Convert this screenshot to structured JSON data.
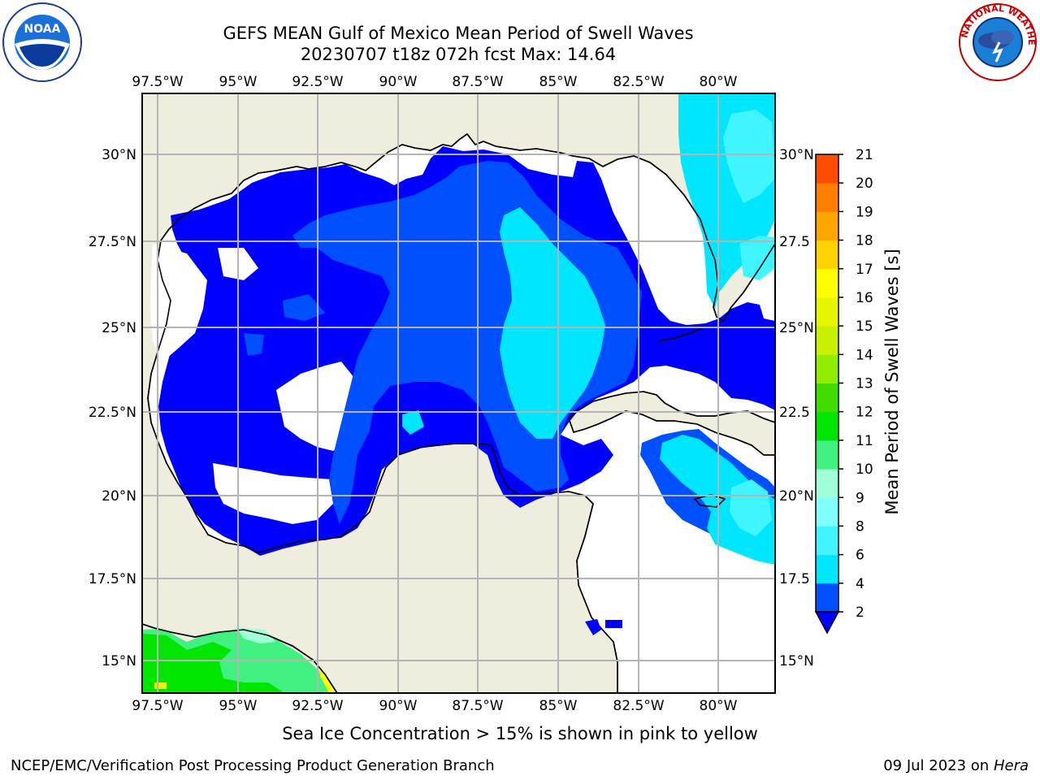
{
  "title": {
    "line1": "GEFS MEAN Gulf of Mexico Mean Period of Swell Waves",
    "line2": "20230707 t18z 072h fcst   Max: 14.64"
  },
  "logos": {
    "left": {
      "icon": "noaa-logo",
      "text": "NOAA"
    },
    "right": {
      "icon": "nws-logo",
      "text": "NATIONAL WEATHER SERVICE"
    }
  },
  "map": {
    "longitude_labels": [
      "97.5°W",
      "95°W",
      "92.5°W",
      "90°W",
      "87.5°W",
      "85°W",
      "82.5°W",
      "80°W"
    ],
    "latitude_labels_left": [
      "30°N",
      "27.5°N",
      "25°N",
      "22.5°N",
      "20°N",
      "17.5°N",
      "15°N"
    ],
    "latitude_labels_right": [
      "30°N",
      "27.5",
      "25°N",
      "22.5",
      "20°N",
      "17.5",
      "15°N"
    ],
    "lon_range": [
      -98,
      -78.4
    ],
    "lat_range": [
      14,
      31.8
    ],
    "land_color": "#efedde",
    "grid_color": "#b4b4b4"
  },
  "colorbar": {
    "label": "Mean Period of Swell Waves [s]",
    "ticks": [
      "2",
      "4",
      "6",
      "8",
      "9",
      "10",
      "11",
      "12",
      "13",
      "14",
      "15",
      "16",
      "17",
      "18",
      "19",
      "20",
      "21"
    ],
    "colors": [
      "#0050ff",
      "#00e6ff",
      "#40f5ff",
      "#80ffff",
      "#a0ffd8",
      "#40f080",
      "#00e600",
      "#40dd00",
      "#90ee00",
      "#c8f000",
      "#e8f500",
      "#ffff00",
      "#ffd200",
      "#ffa500",
      "#ff7d00",
      "#ff4b00",
      "#ff1a00",
      "#ff0000"
    ],
    "under_color": "#0000ff"
  },
  "footer": {
    "subtitle": "Sea Ice Concentration > 15% is shown in pink to yellow",
    "credit": "NCEP/EMC/Verification Post Processing Product Generation Branch",
    "date": "09 Jul 2023 on ",
    "machine": "Hera"
  }
}
